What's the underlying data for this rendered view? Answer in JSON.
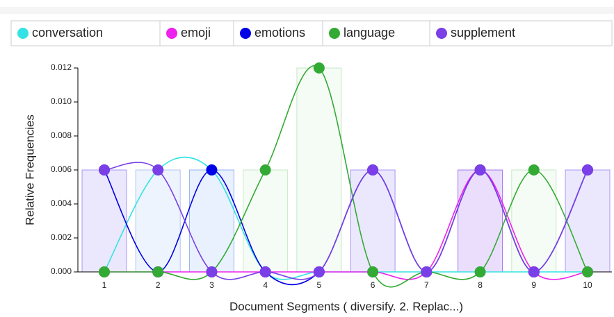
{
  "chart_data": {
    "type": "line",
    "x_label": "Document Segments ( diversify. 2. Replac...)",
    "y_label": "Relative Frequencies",
    "categories": [
      "1",
      "2",
      "3",
      "4",
      "5",
      "6",
      "7",
      "8",
      "9",
      "10"
    ],
    "series": [
      {
        "name": "conversation",
        "color": "#33e3e3",
        "values": [
          0,
          0.006,
          0.006,
          0,
          0,
          0,
          0,
          0,
          0,
          0
        ]
      },
      {
        "name": "emoji",
        "color": "#ee22ee",
        "values": [
          0,
          0,
          0,
          0,
          0,
          0,
          0,
          0.006,
          0,
          0
        ]
      },
      {
        "name": "emotions",
        "color": "#0000e6",
        "values": [
          0.006,
          0,
          0.006,
          0,
          0,
          0.006,
          0,
          0.006,
          0,
          0.006
        ]
      },
      {
        "name": "language",
        "color": "#33aa33",
        "values": [
          0,
          0,
          0,
          0.006,
          0.012,
          0,
          0,
          0,
          0.006,
          0
        ]
      },
      {
        "name": "supplement",
        "color": "#7a3fe6",
        "values": [
          0.006,
          0.006,
          0,
          0,
          0,
          0.006,
          0,
          0.006,
          0,
          0.006
        ]
      }
    ],
    "ylim": [
      0,
      0.012
    ],
    "yticks": [
      {
        "value": 0,
        "label": "0.000"
      },
      {
        "value": 0.002,
        "label": "0.002"
      },
      {
        "value": 0.004,
        "label": "0.004"
      },
      {
        "value": 0.006,
        "label": "0.006"
      },
      {
        "value": 0.008,
        "label": "0.008"
      },
      {
        "value": 0.01,
        "label": "0.010"
      },
      {
        "value": 0.012,
        "label": "0.012"
      }
    ],
    "grid": false
  }
}
